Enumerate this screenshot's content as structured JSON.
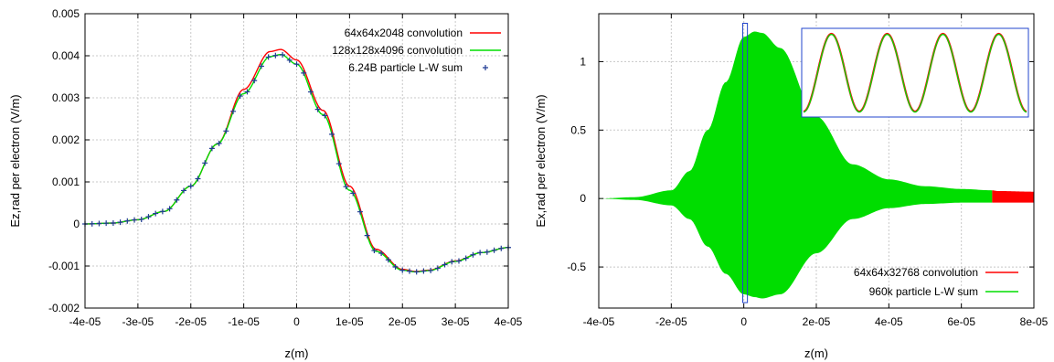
{
  "chart_data": [
    {
      "type": "line",
      "xlabel": "z(m)",
      "ylabel": "Ez,rad per electron (V/m)",
      "xlim": [
        -4e-05,
        4e-05
      ],
      "ylim": [
        -0.002,
        0.005
      ],
      "x_ticks": [
        "-4e-05",
        "-3e-05",
        "-2e-05",
        "-1e-05",
        "0",
        "1e-05",
        "2e-05",
        "3e-05",
        "4e-05"
      ],
      "y_ticks": [
        "-0.002",
        "-0.001",
        "0",
        "0.001",
        "0.002",
        "0.003",
        "0.004",
        "0.005"
      ],
      "grid": true,
      "legend_position": "top-right",
      "series": [
        {
          "name": "64x64x2048 convolution",
          "color": "#ff0000",
          "style": "line",
          "x": [
            -4e-05,
            -3.5e-05,
            -3e-05,
            -2.5e-05,
            -2e-05,
            -1.5e-05,
            -1e-05,
            -5e-06,
            -3e-06,
            0,
            5e-06,
            1e-05,
            1.5e-05,
            2e-05,
            2.25e-05,
            2.5e-05,
            3e-05,
            3.5e-05,
            4e-05
          ],
          "y": [
            0.0,
            2e-05,
            0.0001,
            0.0003,
            0.0009,
            0.0019,
            0.0032,
            0.0041,
            0.00415,
            0.0039,
            0.0027,
            0.0009,
            -0.0006,
            -0.00108,
            -0.00113,
            -0.0011,
            -0.00088,
            -0.00068,
            -0.00056
          ]
        },
        {
          "name": "128x128x4096 convolution",
          "color": "#00dd00",
          "style": "line",
          "x": [
            -4e-05,
            -3.5e-05,
            -3e-05,
            -2.5e-05,
            -2e-05,
            -1.5e-05,
            -1e-05,
            -5e-06,
            -3e-06,
            0,
            5e-06,
            1e-05,
            1.5e-05,
            2e-05,
            2.25e-05,
            2.5e-05,
            3e-05,
            3.5e-05,
            4e-05
          ],
          "y": [
            0.0,
            2e-05,
            0.0001,
            0.0003,
            0.0009,
            0.0019,
            0.0031,
            0.00398,
            0.00403,
            0.0038,
            0.0026,
            0.0008,
            -0.00065,
            -0.0011,
            -0.00114,
            -0.00111,
            -0.00089,
            -0.00068,
            -0.00056
          ]
        },
        {
          "name": "6.24B particle L-W sum",
          "color": "#1f3a93",
          "style": "points",
          "x": [
            -4e-05,
            -3.5e-05,
            -3e-05,
            -2.5e-05,
            -2e-05,
            -1.5e-05,
            -1e-05,
            -5e-06,
            -3e-06,
            0,
            5e-06,
            1e-05,
            1.5e-05,
            2e-05,
            2.25e-05,
            2.5e-05,
            3e-05,
            3.5e-05,
            4e-05
          ],
          "y": [
            0.0,
            2e-05,
            0.0001,
            0.0003,
            0.0009,
            0.0019,
            0.0031,
            0.00398,
            0.00403,
            0.0038,
            0.0026,
            0.0008,
            -0.00065,
            -0.0011,
            -0.00114,
            -0.00111,
            -0.00089,
            -0.00068,
            -0.00056
          ]
        }
      ]
    },
    {
      "type": "area",
      "xlabel": "z(m)",
      "ylabel": "Ex,rad per electron (V/m)",
      "xlim": [
        -4e-05,
        8e-05
      ],
      "ylim": [
        -0.8,
        1.35
      ],
      "x_ticks": [
        "-4e-05",
        "-2e-05",
        "0",
        "2e-05",
        "4e-05",
        "6e-05",
        "8e-05"
      ],
      "y_ticks": [
        "-0.5",
        "0",
        "0.5",
        "1"
      ],
      "grid": true,
      "legend_position": "bottom-right",
      "envelope": {
        "x": [
          -4e-05,
          -3e-05,
          -2e-05,
          -1.5e-05,
          -1e-05,
          -5e-06,
          0,
          3e-06,
          5e-06,
          1e-05,
          2e-05,
          3e-05,
          4e-05,
          5e-05,
          6e-05,
          6.85e-05,
          7e-05,
          8e-05
        ],
        "upper": [
          0.0,
          0.01,
          0.06,
          0.2,
          0.5,
          0.85,
          1.18,
          1.22,
          1.21,
          1.1,
          0.6,
          0.25,
          0.14,
          0.09,
          0.07,
          0.06,
          0.055,
          0.05
        ],
        "lower": [
          0.0,
          -0.01,
          -0.05,
          -0.15,
          -0.35,
          -0.55,
          -0.7,
          -0.72,
          -0.73,
          -0.7,
          -0.4,
          -0.15,
          -0.07,
          -0.04,
          -0.03,
          -0.03,
          -0.03,
          -0.03
        ]
      },
      "series": [
        {
          "name": "64x64x32768 convolution",
          "color": "#ff0000"
        },
        {
          "name": "960k particle L-W sum",
          "color": "#00dd00"
        }
      ],
      "inset": {
        "cycles": 4,
        "series_colors": [
          "#ff0000",
          "#00dd00"
        ],
        "highlight_x": [
          -3e-07,
          1e-06
        ],
        "border_color": "#2244cc"
      }
    }
  ]
}
